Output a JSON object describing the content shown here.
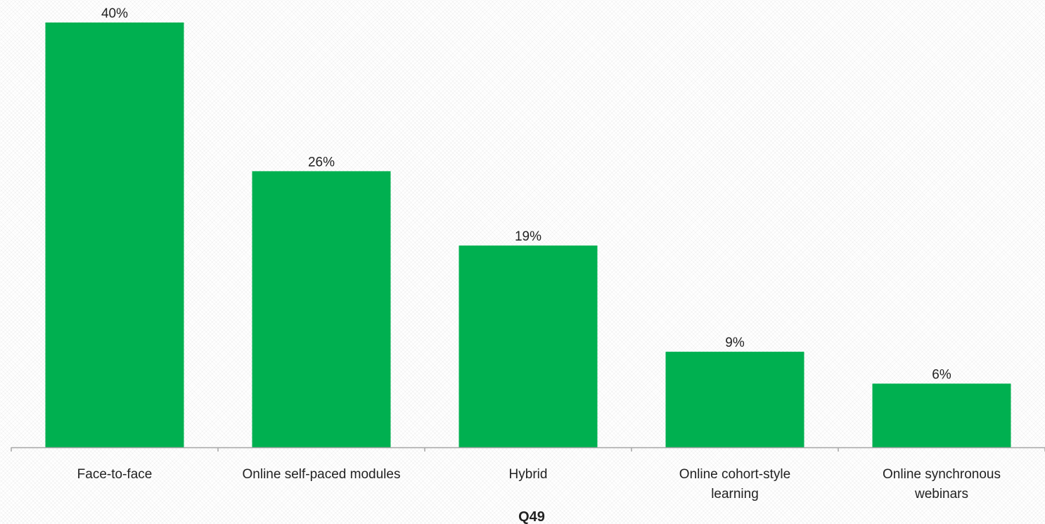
{
  "chart_data": {
    "type": "bar",
    "categories": [
      [
        "Face-to-face"
      ],
      [
        "Online self-paced modules"
      ],
      [
        "Hybrid"
      ],
      [
        "Online cohort-style",
        "learning"
      ],
      [
        "Online synchronous",
        "webinars"
      ]
    ],
    "values": [
      40,
      26,
      19,
      9,
      6
    ],
    "data_labels": [
      "40%",
      "26%",
      "19%",
      "9%",
      "6%"
    ],
    "unit": "%",
    "xlabel": "Q49",
    "ylabel": "",
    "title": "",
    "ylim": [
      0,
      40
    ],
    "grid": false,
    "legend": "none",
    "bar_color": "#00B050",
    "axis_color": "#a6a6a6"
  }
}
